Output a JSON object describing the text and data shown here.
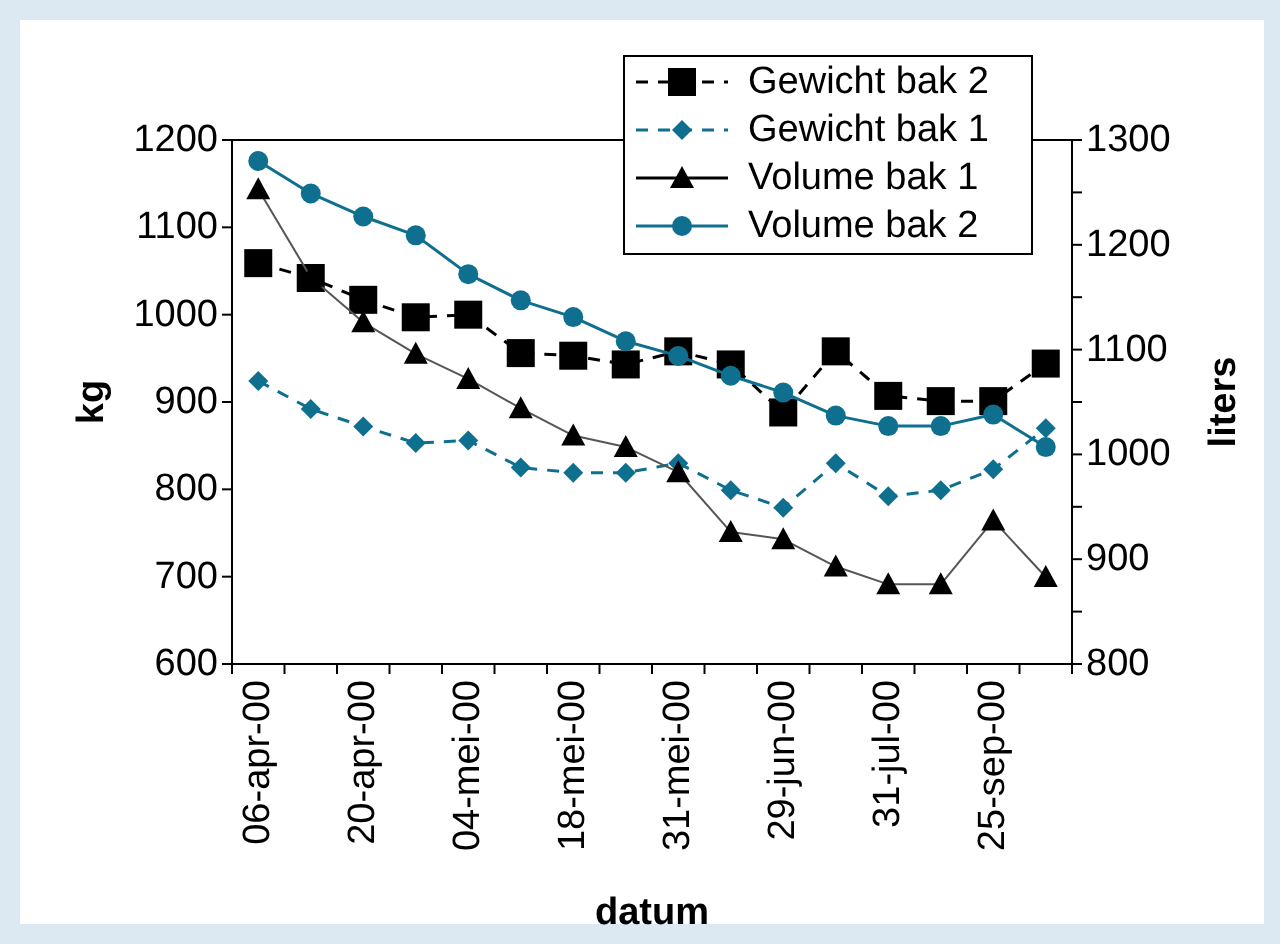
{
  "chart_data": {
    "type": "line",
    "xlabel": "datum",
    "ylabel": "kg",
    "y2label": "liters",
    "categories": [
      "06-apr-00",
      null,
      "20-apr-00",
      null,
      "04-mei-00",
      null,
      "18-mei-00",
      null,
      "31-mei-00",
      null,
      "29-jun-00",
      null,
      "31-jul-00",
      null,
      "25-sep-00",
      null
    ],
    "series": [
      {
        "name": "Gewicht bak 2",
        "color": "#000000",
        "marker": "square",
        "line_style": "dashed",
        "values": [
          1059,
          1042,
          1017,
          997,
          1000,
          956,
          953,
          943,
          958,
          943,
          888,
          958,
          907,
          901,
          901,
          944
        ]
      },
      {
        "name": "Gewicht bak 1",
        "color": "#0e6f8f",
        "marker": "diamond",
        "line_style": "dashed",
        "values": [
          924,
          892,
          872,
          853,
          856,
          825,
          819,
          819,
          830,
          799,
          779,
          830,
          792,
          799,
          823,
          870
        ]
      },
      {
        "name": "Volume bak 1",
        "color": "#000000",
        "marker": "triangle",
        "line_style": "solid",
        "axis": "y2",
        "values": [
          1253,
          1169,
          1126,
          1096,
          1072,
          1044,
          1018,
          1007,
          983,
          926,
          919,
          893,
          876,
          876,
          937,
          883
        ]
      },
      {
        "name": "Volume bak 2",
        "color": "#0e6f8f",
        "marker": "circle",
        "line_style": "solid",
        "axis": "y2",
        "values": [
          1280,
          1249,
          1227,
          1209,
          1172,
          1147,
          1131,
          1108,
          1094,
          1075,
          1059,
          1037,
          1027,
          1027,
          1038,
          1007
        ]
      }
    ],
    "ylim": [
      600,
      1200
    ],
    "yticks": [
      600,
      700,
      800,
      900,
      1000,
      1100,
      1200
    ],
    "y2lim": [
      800,
      1300
    ],
    "y2ticks": [
      800,
      {
        "value": 850,
        "label": null
      },
      900,
      {
        "value": 950,
        "label": null
      },
      1000,
      {
        "value": 1050,
        "label": null
      },
      1100,
      {
        "value": 1150,
        "label": null
      },
      1200,
      {
        "value": 1250,
        "label": null
      },
      1300
    ],
    "legend": "top right",
    "grid": false
  }
}
